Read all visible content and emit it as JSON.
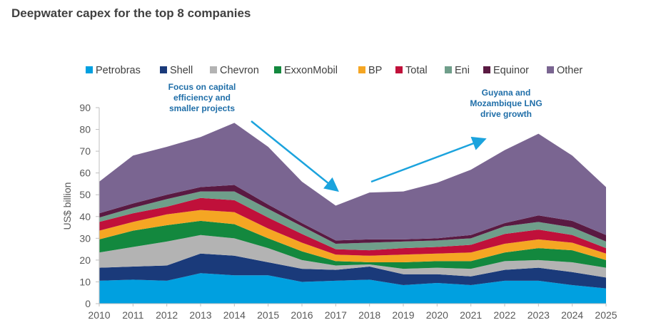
{
  "chart_data": {
    "type": "area",
    "title": "Deepwater capex for the top 8 companies",
    "ylabel": "US$ billion",
    "xlabel": "",
    "ylim": [
      0,
      90
    ],
    "yticks": [
      0,
      10,
      20,
      30,
      40,
      50,
      60,
      70,
      80,
      90
    ],
    "x": [
      "2010",
      "2011",
      "2012",
      "2013",
      "2014",
      "2015",
      "2016",
      "2017",
      "2018",
      "2019",
      "2020",
      "2021",
      "2022",
      "2023",
      "2024",
      "2025"
    ],
    "legend_position": "top",
    "grid": false,
    "series": [
      {
        "name": "Petrobras",
        "color": "#00a0e0",
        "values": [
          10.5,
          11,
          10.5,
          14,
          13,
          13,
          10,
          10.5,
          11,
          8.5,
          9.5,
          8.5,
          10.5,
          10.5,
          8.5,
          7
        ]
      },
      {
        "name": "Shell",
        "color": "#1a3a7a",
        "values": [
          6,
          6,
          7,
          9,
          9,
          6,
          6,
          5,
          6,
          5,
          4,
          4,
          5,
          6,
          6,
          5
        ]
      },
      {
        "name": "Chevron",
        "color": "#b3b3b3",
        "values": [
          7,
          9,
          11,
          8.5,
          8,
          6.5,
          4,
          2,
          1,
          2.5,
          3,
          3.5,
          4,
          3.5,
          4.5,
          4.5
        ]
      },
      {
        "name": "ExxonMobil",
        "color": "#13883e",
        "values": [
          6,
          7.5,
          7.5,
          6.5,
          6.5,
          4.5,
          4,
          2,
          1,
          3,
          3,
          3.5,
          4,
          5.5,
          5.5,
          3.5
        ]
      },
      {
        "name": "BP",
        "color": "#f5a623",
        "values": [
          4,
          4,
          5,
          5,
          5.5,
          4.5,
          4,
          3,
          3,
          3.5,
          3.5,
          4,
          4,
          4,
          3.5,
          3
        ]
      },
      {
        "name": "Total",
        "color": "#c0103a",
        "values": [
          4,
          4,
          3.5,
          5.5,
          5.5,
          5,
          4,
          2.5,
          2.5,
          3,
          3,
          3.5,
          4.5,
          4.5,
          3.5,
          2.5
        ]
      },
      {
        "name": "Eni",
        "color": "#6f9e8a",
        "values": [
          2,
          2.5,
          3.5,
          3,
          4,
          4,
          3.5,
          2.5,
          3.5,
          3,
          3,
          3,
          3.5,
          3.5,
          3.5,
          3
        ]
      },
      {
        "name": "Equinor",
        "color": "#5a1a42",
        "values": [
          2,
          2,
          2,
          2,
          3,
          2,
          1.5,
          1.5,
          1.5,
          1,
          1,
          1.5,
          1.5,
          3,
          3,
          3
        ]
      },
      {
        "name": "Other",
        "color": "#7a6591",
        "values": [
          14.5,
          22,
          22,
          23,
          28.5,
          26.5,
          19,
          16,
          21.5,
          22,
          25.5,
          30,
          33.5,
          37.5,
          30,
          22
        ]
      }
    ],
    "annotations": [
      {
        "lines": [
          "Focus  on capital",
          "efficiency and",
          "smaller projects"
        ]
      },
      {
        "lines": [
          "Guyana and",
          "Mozambique LNG",
          "drive growth"
        ]
      }
    ],
    "arrow_color": "#1ba3dd"
  }
}
